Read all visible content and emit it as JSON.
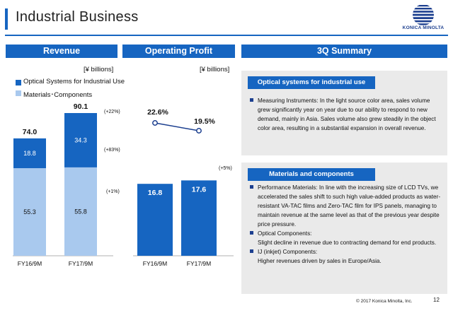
{
  "header": {
    "title": "Industrial Business",
    "logo_text": "KONICA MINOLTA"
  },
  "revenue": {
    "heading": "Revenue",
    "unit": "[¥ billions]",
    "legend": [
      "Optical Systems for Industrial Use",
      "Materials･Components"
    ],
    "colors": {
      "optical": "#1665c1",
      "materials": "#a9c9ee"
    },
    "chart_data": {
      "type": "bar",
      "stacked": true,
      "categories": [
        "FY16/9M",
        "FY17/9M"
      ],
      "series": [
        {
          "name": "Materials･Components",
          "values": [
            55.3,
            55.8
          ]
        },
        {
          "name": "Optical Systems for Industrial Use",
          "values": [
            18.8,
            34.3
          ]
        }
      ],
      "totals": [
        74.0,
        90.1
      ],
      "total_labels": [
        "74.0",
        "90.1"
      ],
      "value_labels": {
        "materials": [
          "55.3",
          "55.8"
        ],
        "optical": [
          "18.8",
          "34.3"
        ]
      },
      "changes": {
        "total": "(+22%)",
        "optical": "(+83%)",
        "materials": "(+1%)"
      }
    }
  },
  "operating_profit": {
    "heading": "Operating Profit",
    "unit": "[¥ billions]",
    "chart_data": {
      "type": "bar",
      "categories": [
        "FY16/9M",
        "FY17/9M"
      ],
      "values": [
        16.8,
        17.6
      ],
      "value_labels": [
        "16.8",
        "17.6"
      ],
      "change": "(+5%)",
      "margin_line": {
        "values": [
          22.6,
          19.5
        ],
        "labels": [
          "22.6%",
          "19.5%"
        ]
      }
    }
  },
  "summary": {
    "heading": "3Q Summary",
    "box1": {
      "title": "Optical systems for industrial use",
      "bullets": [
        "Measuring Instruments: In the light source color area, sales volume grew significantly year on year due to our ability to respond to new demand, mainly in Asia. Sales volume also grew steadily in the object color area, resulting in a substantial expansion in overall revenue."
      ]
    },
    "box2": {
      "title": "Materials and components",
      "bullets": [
        "Performance Materials: In line with the increasing size of LCD TVs, we accelerated the sales shift to such high value-added products as water-resistant VA-TAC films and Zero-TAC film for IPS panels, managing to maintain revenue at the same level as that of the previous year despite price pressure.",
        "Optical Components:",
        "IJ (inkjet) Components:"
      ],
      "sublines": [
        "Slight decline in revenue due to contracting demand for end products.",
        "Higher revenues driven by sales in Europe/Asia."
      ]
    }
  },
  "footer": {
    "copyright": "© 2017 Konica Minolta, Inc.",
    "page": "12"
  }
}
